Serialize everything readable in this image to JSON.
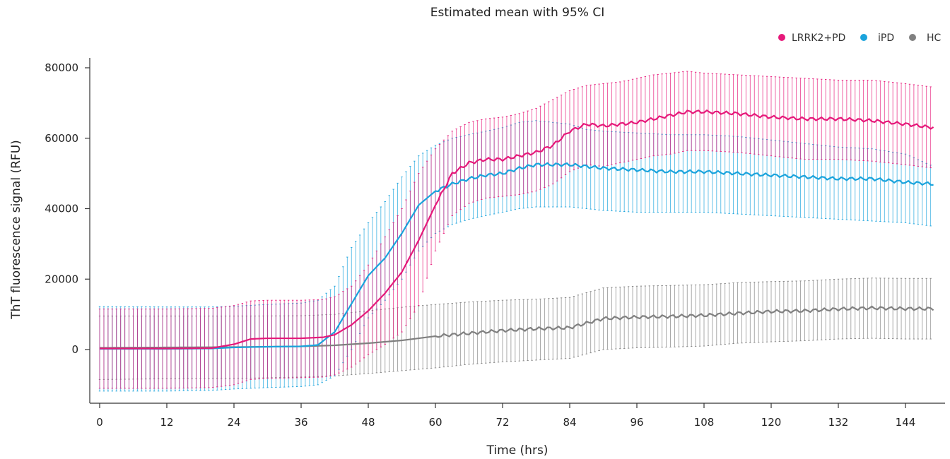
{
  "chart_data": {
    "type": "line",
    "title": "Estimated mean with 95% CI",
    "xlabel": "Time (hrs)",
    "ylabel": "ThT fluorescence signal (RFU)",
    "xlim": [
      0,
      150
    ],
    "ylim": [
      -15000,
      85000
    ],
    "xticks": [
      "0",
      "12",
      "24",
      "36",
      "48",
      "60",
      "72",
      "84",
      "96",
      "108",
      "120",
      "132",
      "144"
    ],
    "yticks": [
      "0",
      "20000",
      "40000",
      "60000",
      "80000"
    ],
    "grid": false,
    "legend": "top-right",
    "error_bars": "95% CI",
    "series": [
      {
        "name": "HC",
        "color": "#808080",
        "x": [
          0,
          12,
          24,
          36,
          42,
          48,
          54,
          60,
          66,
          72,
          78,
          84,
          90,
          96,
          102,
          108,
          114,
          120,
          126,
          132,
          138,
          144,
          149
        ],
        "mean": [
          500,
          600,
          700,
          900,
          1200,
          1800,
          2600,
          3800,
          4600,
          5400,
          5900,
          6200,
          8800,
          9200,
          9400,
          9700,
          10300,
          10800,
          11000,
          11500,
          11800,
          11600,
          11600
        ],
        "upper": [
          9500,
          9500,
          9500,
          9600,
          10000,
          11000,
          12000,
          12800,
          13500,
          14000,
          14300,
          14800,
          17500,
          18000,
          18200,
          18400,
          19000,
          19300,
          19500,
          20000,
          20300,
          20200,
          20200
        ],
        "lower": [
          -8500,
          -8300,
          -8200,
          -7800,
          -7500,
          -6800,
          -6000,
          -5200,
          -4200,
          -3500,
          -3000,
          -2500,
          0,
          500,
          700,
          1000,
          1800,
          2200,
          2500,
          3000,
          3200,
          3000,
          3000
        ]
      },
      {
        "name": "iPD",
        "color": "#1aa3dc",
        "x": [
          0,
          12,
          20,
          24,
          30,
          36,
          39,
          42,
          45,
          48,
          51,
          54,
          57,
          60,
          63,
          66,
          69,
          72,
          75,
          78,
          81,
          84,
          87,
          90,
          96,
          102,
          108,
          114,
          120,
          126,
          132,
          138,
          144,
          149
        ],
        "mean": [
          200,
          200,
          300,
          600,
          800,
          900,
          1300,
          5000,
          13000,
          21000,
          26000,
          33000,
          41000,
          45000,
          47000,
          48500,
          49500,
          50000,
          51500,
          52500,
          52500,
          52500,
          52000,
          51500,
          51000,
          50500,
          50500,
          50000,
          49500,
          49000,
          48500,
          48500,
          47500,
          47000
        ],
        "upper": [
          12200,
          12100,
          12100,
          12300,
          12800,
          13200,
          14000,
          18000,
          29000,
          36000,
          42000,
          49000,
          55000,
          58000,
          60000,
          61000,
          62000,
          63000,
          64500,
          65000,
          64500,
          64000,
          62500,
          62000,
          61500,
          61000,
          61000,
          60500,
          59500,
          58500,
          57500,
          57000,
          55500,
          52000
        ],
        "lower": [
          -11800,
          -11800,
          -11600,
          -11200,
          -10800,
          -10500,
          -10000,
          -7500,
          0,
          9000,
          14000,
          20000,
          28000,
          33000,
          35500,
          37000,
          38000,
          39000,
          40000,
          40500,
          40500,
          40500,
          40000,
          39500,
          39000,
          39000,
          39000,
          38500,
          38000,
          37500,
          37000,
          36500,
          36000,
          35000
        ]
      },
      {
        "name": "LRRK2+PD",
        "color": "#e6197a",
        "x": [
          0,
          12,
          20,
          24,
          27,
          30,
          36,
          40,
          42,
          45,
          48,
          51,
          54,
          57,
          60,
          63,
          66,
          69,
          72,
          75,
          78,
          81,
          84,
          87,
          90,
          93,
          96,
          99,
          102,
          105,
          108,
          114,
          120,
          126,
          132,
          138,
          144,
          149
        ],
        "mean": [
          300,
          300,
          400,
          1500,
          3000,
          3200,
          3200,
          3500,
          4200,
          7000,
          11000,
          16000,
          22000,
          31000,
          41000,
          50000,
          53000,
          54000,
          54000,
          55000,
          56000,
          58000,
          62000,
          64000,
          63500,
          64000,
          64500,
          65500,
          66500,
          67500,
          67500,
          67000,
          66000,
          65500,
          65500,
          65000,
          64000,
          63000
        ],
        "upper": [
          11500,
          11500,
          11700,
          12500,
          13800,
          14000,
          14000,
          14200,
          15000,
          18000,
          24000,
          32000,
          40000,
          50000,
          57000,
          62000,
          64500,
          65500,
          66000,
          67000,
          68500,
          71000,
          73500,
          75000,
          75500,
          76000,
          77000,
          78000,
          78500,
          79000,
          78500,
          78000,
          77500,
          77000,
          76500,
          76500,
          75500,
          74500
        ],
        "lower": [
          -11000,
          -11000,
          -10800,
          -10000,
          -8500,
          -8200,
          -8000,
          -7800,
          -7200,
          -5000,
          -1500,
          1500,
          5000,
          12500,
          28000,
          38000,
          41500,
          43000,
          43500,
          44000,
          45000,
          47000,
          50500,
          52500,
          52000,
          53000,
          54000,
          55000,
          55500,
          56500,
          56500,
          56000,
          55000,
          54000,
          54000,
          53500,
          52500,
          51500
        ]
      }
    ]
  }
}
